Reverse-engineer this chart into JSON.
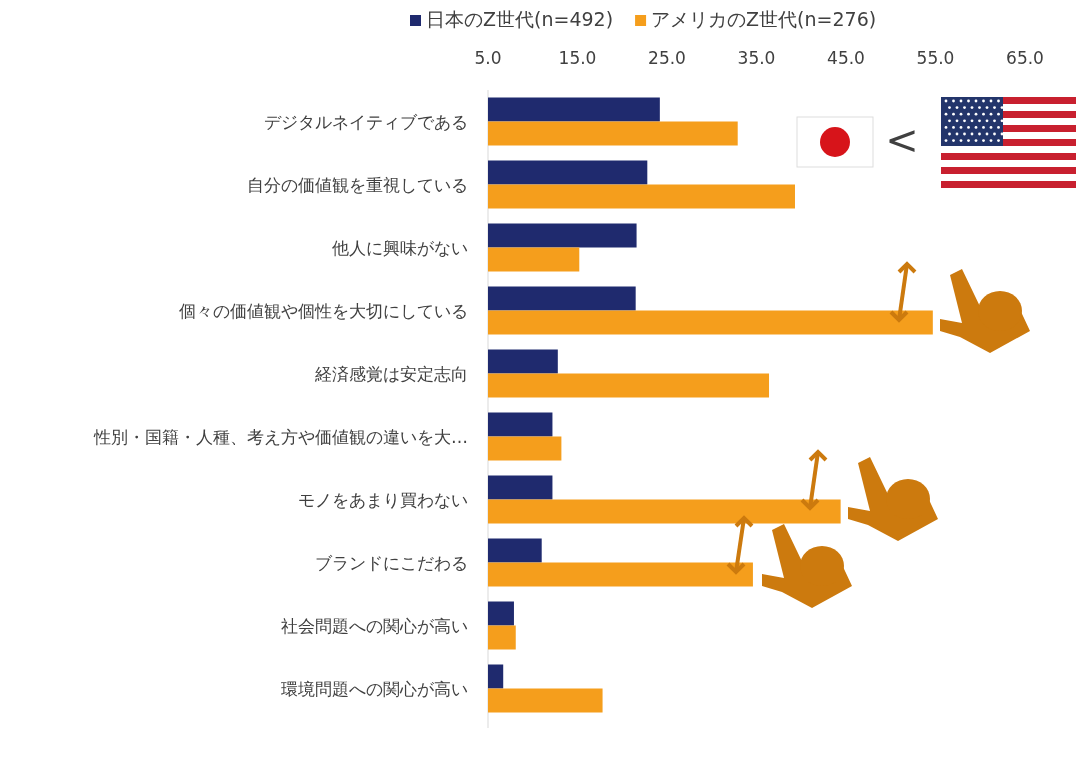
{
  "chart_data": {
    "type": "bar",
    "orientation": "horizontal",
    "categories": [
      "デジタルネイティブである",
      "自分の価値観を重視している",
      "他人に興味がない",
      "個々の価値観や個性を大切にしている",
      "経済感覚は安定志向",
      "性別・国籍・人種、考え方や価値観の違いを大…",
      "モノをあまり買わない",
      "ブランドにこだわる",
      "社会問題への関心が高い",
      "環境問題への関心が高い"
    ],
    "series": [
      {
        "name": "日本のZ世代(n=492)",
        "color": "#1f2a6e",
        "values": [
          24.2,
          22.8,
          21.6,
          21.5,
          12.8,
          12.2,
          12.2,
          11.0,
          7.9,
          6.7
        ]
      },
      {
        "name": "アメリカのZ世代(n=276)",
        "color": "#f59e1c",
        "values": [
          32.9,
          39.3,
          15.2,
          54.7,
          36.4,
          13.2,
          44.4,
          34.6,
          8.1,
          17.8
        ]
      }
    ],
    "xlim": [
      5,
      65
    ],
    "xticks": [
      {
        "value": 5,
        "label": "5.0"
      },
      {
        "value": 15,
        "label": "15.0"
      },
      {
        "value": 25,
        "label": "25.0"
      },
      {
        "value": 35,
        "label": "35.0"
      },
      {
        "value": 45,
        "label": "45.0"
      },
      {
        "value": 55,
        "label": "55.0"
      },
      {
        "value": 65,
        "label": "65.0"
      }
    ],
    "legend": "top",
    "grid": false,
    "annotations": [
      "<"
    ]
  }
}
